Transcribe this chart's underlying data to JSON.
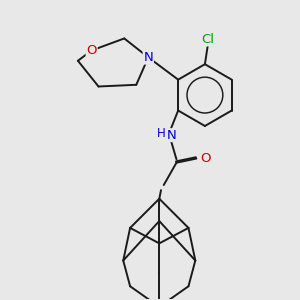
{
  "background_color": "#e8e8e8",
  "bond_color": "#1a1a1a",
  "bond_width": 1.4,
  "atom_colors": {
    "N": "#0000cc",
    "O": "#cc0000",
    "Cl": "#00aa00",
    "C": "#1a1a1a"
  },
  "font_size": 8.5,
  "fig_width": 3.0,
  "fig_height": 3.0,
  "dpi": 100
}
